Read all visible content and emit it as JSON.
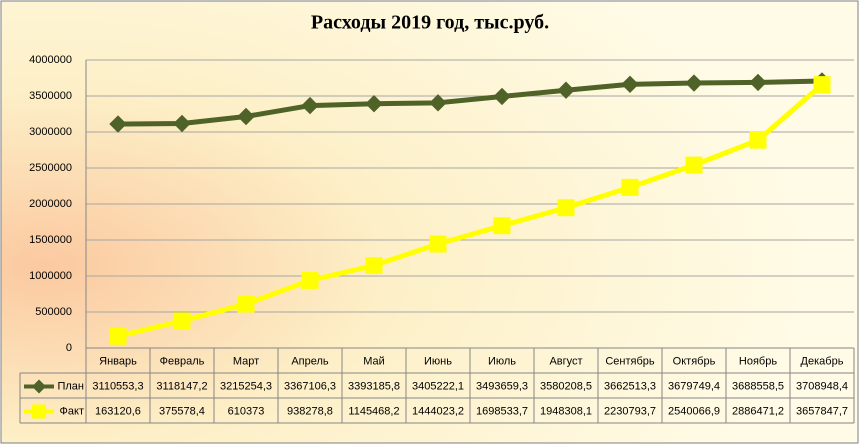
{
  "chart_data": {
    "type": "line",
    "title": "Расходы 2019 год, тыс.руб.",
    "categories": [
      "Январь",
      "Февраль",
      "Март",
      "Апрель",
      "Май",
      "Июнь",
      "Июль",
      "Август",
      "Сентябрь",
      "Октябрь",
      "Ноябрь",
      "Декабрь"
    ],
    "series": [
      {
        "name": "План",
        "color": "#4f6228",
        "marker": "diamond",
        "values": [
          3110553.3,
          3118147.2,
          3215254.3,
          3367106.3,
          3393185.8,
          3405222.1,
          3493659.3,
          3580208.5,
          3662513.3,
          3679749.4,
          3688558.5,
          3708948.4
        ],
        "value_labels": [
          "3110553,3",
          "3118147,2",
          "3215254,3",
          "3367106,3",
          "3393185,8",
          "3405222,1",
          "3493659,3",
          "3580208,5",
          "3662513,3",
          "3679749,4",
          "3688558,5",
          "3708948,4"
        ]
      },
      {
        "name": "Факт",
        "color": "#ffff00",
        "marker": "square",
        "values": [
          163120.6,
          375578.4,
          610373,
          938278.8,
          1145468.2,
          1444023.2,
          1698533.7,
          1948308.1,
          2230793.7,
          2540066.9,
          2886471.2,
          3657847.7
        ],
        "value_labels": [
          "163120,6",
          "375578,4",
          "610373",
          "938278,8",
          "1145468,2",
          "1444023,2",
          "1698533,7",
          "1948308,1",
          "2230793,7",
          "2540066,9",
          "2886471,2",
          "3657847,7"
        ]
      }
    ],
    "ylim": [
      0,
      4000000
    ],
    "yticks": [
      0,
      500000,
      1000000,
      1500000,
      2000000,
      2500000,
      3000000,
      3500000,
      4000000
    ],
    "grid": true
  }
}
